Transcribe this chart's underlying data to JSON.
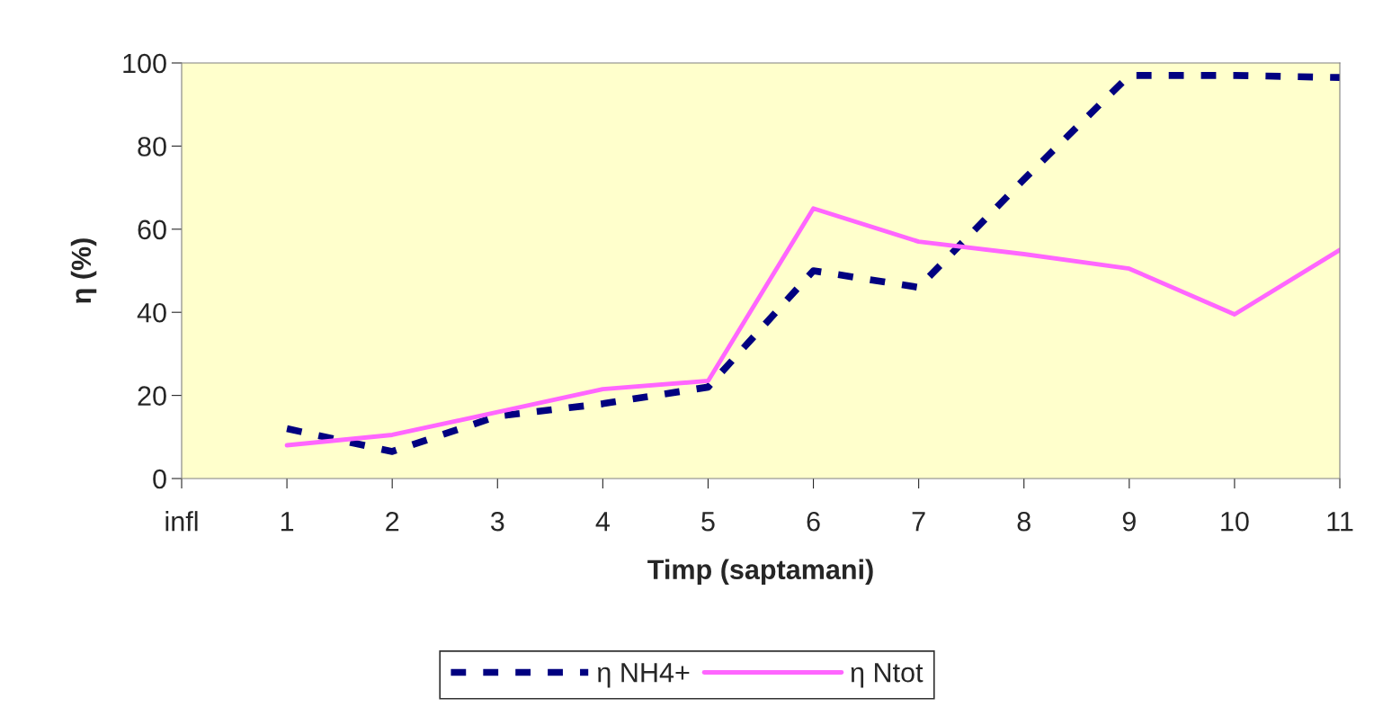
{
  "chart_data": {
    "type": "line",
    "xlabel": "Timp (saptamani)",
    "ylabel": "η (%)",
    "categories": [
      "infl",
      "1",
      "2",
      "3",
      "4",
      "5",
      "6",
      "7",
      "8",
      "9",
      "10",
      "11"
    ],
    "series": [
      {
        "name": "η NH4+",
        "color": "#000080",
        "line_style": "dashed",
        "values": [
          null,
          12,
          6.5,
          15,
          18,
          22,
          50,
          46,
          72,
          97,
          97,
          96.5
        ]
      },
      {
        "name": "η Ntot",
        "color": "#ff66ff",
        "line_style": "solid",
        "values": [
          null,
          8,
          10.5,
          16,
          21.5,
          23.5,
          65,
          57,
          54,
          50.5,
          39.5,
          55
        ]
      }
    ],
    "ylim": [
      0,
      100
    ],
    "yticks": [
      0,
      20,
      40,
      60,
      80,
      100
    ],
    "grid": false,
    "legend": "bottom",
    "marker": "none"
  }
}
